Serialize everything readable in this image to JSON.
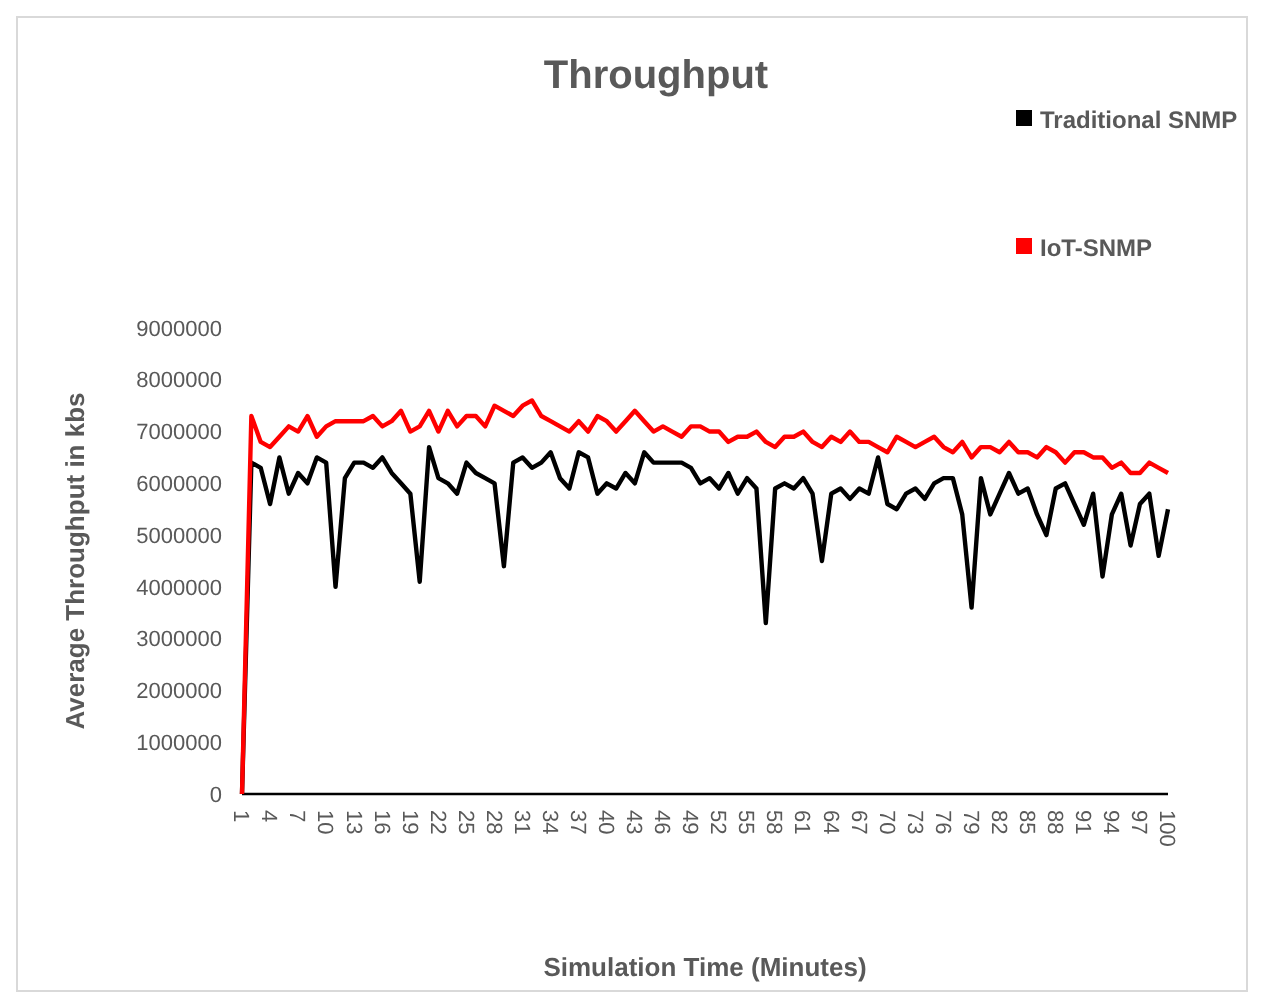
{
  "chart_data": {
    "type": "line",
    "title": "Throughput",
    "xlabel": "Simulation Time (Minutes)",
    "ylabel": "Average Throughput in kbs",
    "categories": [
      "1",
      null,
      null,
      "4",
      null,
      null,
      "7",
      null,
      null,
      "10",
      null,
      null,
      "13",
      null,
      null,
      "16",
      null,
      null,
      "19",
      null,
      null,
      "22",
      null,
      null,
      "25",
      null,
      null,
      "28",
      null,
      null,
      "31",
      null,
      null,
      "34",
      null,
      null,
      "37",
      null,
      null,
      "40",
      null,
      null,
      "43",
      null,
      null,
      "46",
      null,
      null,
      "49",
      null,
      null,
      "52",
      null,
      null,
      "55",
      null,
      null,
      "58",
      null,
      null,
      "61",
      null,
      null,
      "64",
      null,
      null,
      "67",
      null,
      null,
      "70",
      null,
      null,
      "73",
      null,
      null,
      "76",
      null,
      null,
      "79",
      null,
      null,
      "82",
      null,
      null,
      "85",
      null,
      null,
      "88",
      null,
      null,
      "91",
      null,
      null,
      "94",
      null,
      null,
      "97",
      null,
      null,
      "100"
    ],
    "series": [
      {
        "name": "Traditional SNMP",
        "color": "#000000",
        "values": [
          0,
          6400000,
          6300000,
          5600000,
          6500000,
          5800000,
          6200000,
          6000000,
          6500000,
          6400000,
          4000000,
          6100000,
          6400000,
          6400000,
          6300000,
          6500000,
          6200000,
          6000000,
          5800000,
          4100000,
          6700000,
          6100000,
          6000000,
          5800000,
          6400000,
          6200000,
          6100000,
          6000000,
          4400000,
          6400000,
          6500000,
          6300000,
          6400000,
          6600000,
          6100000,
          5900000,
          6600000,
          6500000,
          5800000,
          6000000,
          5900000,
          6200000,
          6000000,
          6600000,
          6400000,
          6400000,
          6400000,
          6400000,
          6300000,
          6000000,
          6100000,
          5900000,
          6200000,
          5800000,
          6100000,
          5900000,
          3300000,
          5900000,
          6000000,
          5900000,
          6100000,
          5800000,
          4500000,
          5800000,
          5900000,
          5700000,
          5900000,
          5800000,
          6500000,
          5600000,
          5500000,
          5800000,
          5900000,
          5700000,
          6000000,
          6100000,
          6100000,
          5400000,
          3600000,
          6100000,
          5400000,
          5800000,
          6200000,
          5800000,
          5900000,
          5400000,
          5000000,
          5900000,
          6000000,
          5600000,
          5200000,
          5800000,
          4200000,
          5400000,
          5800000,
          4800000,
          5600000,
          5800000,
          4600000,
          5500000
        ]
      },
      {
        "name": "IoT-SNMP",
        "color": "#ff0000",
        "values": [
          0,
          7300000,
          6800000,
          6700000,
          6900000,
          7100000,
          7000000,
          7300000,
          6900000,
          7100000,
          7200000,
          7200000,
          7200000,
          7200000,
          7300000,
          7100000,
          7200000,
          7400000,
          7000000,
          7100000,
          7400000,
          7000000,
          7400000,
          7100000,
          7300000,
          7300000,
          7100000,
          7500000,
          7400000,
          7300000,
          7500000,
          7600000,
          7300000,
          7200000,
          7100000,
          7000000,
          7200000,
          7000000,
          7300000,
          7200000,
          7000000,
          7200000,
          7400000,
          7200000,
          7000000,
          7100000,
          7000000,
          6900000,
          7100000,
          7100000,
          7000000,
          7000000,
          6800000,
          6900000,
          6900000,
          7000000,
          6800000,
          6700000,
          6900000,
          6900000,
          7000000,
          6800000,
          6700000,
          6900000,
          6800000,
          7000000,
          6800000,
          6800000,
          6700000,
          6600000,
          6900000,
          6800000,
          6700000,
          6800000,
          6900000,
          6700000,
          6600000,
          6800000,
          6500000,
          6700000,
          6700000,
          6600000,
          6800000,
          6600000,
          6600000,
          6500000,
          6700000,
          6600000,
          6400000,
          6600000,
          6600000,
          6500000,
          6500000,
          6300000,
          6400000,
          6200000,
          6200000,
          6400000,
          6300000,
          6200000
        ]
      }
    ],
    "ylim": [
      0,
      9000000
    ],
    "yticks": [
      0,
      1000000,
      2000000,
      3000000,
      4000000,
      5000000,
      6000000,
      7000000,
      8000000,
      9000000
    ],
    "grid": false,
    "legend": "top right",
    "marker": "none",
    "line_style": "solid"
  }
}
